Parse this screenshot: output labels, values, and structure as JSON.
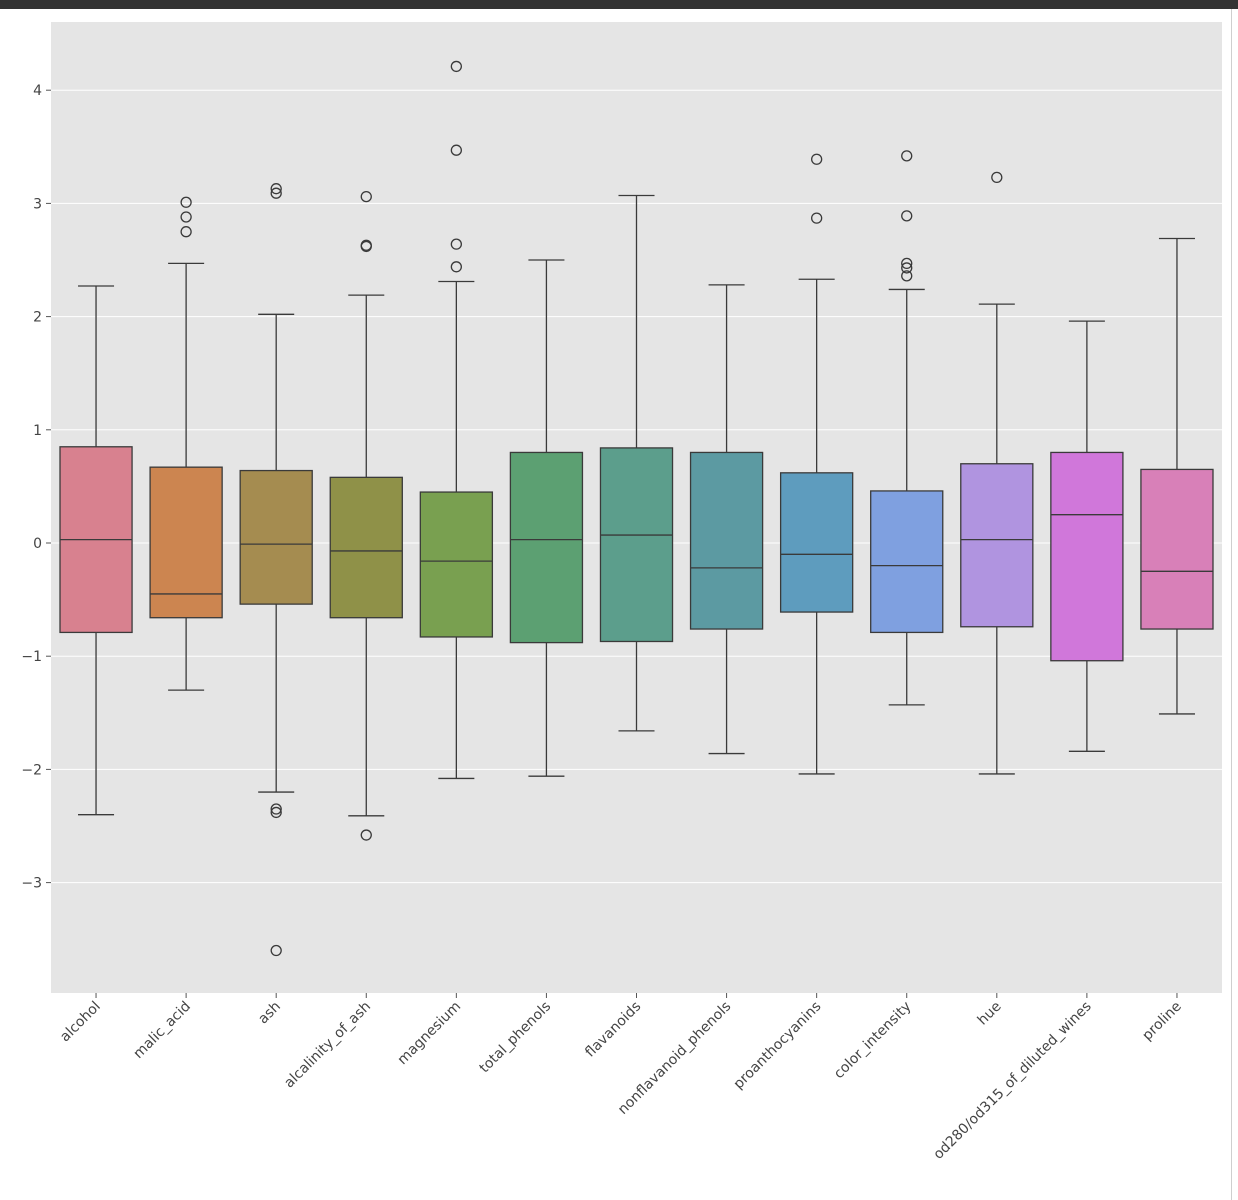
{
  "chart_data": {
    "type": "box",
    "title": "",
    "xlabel": "",
    "ylabel": "",
    "ylim": [
      -4.0,
      4.6
    ],
    "yticks": [
      4,
      3,
      2,
      1,
      0,
      -1,
      -2,
      -3
    ],
    "ytick_labels": [
      "4",
      "3",
      "2",
      "1",
      "0",
      "−1",
      "−2",
      "−3"
    ],
    "grid": true,
    "categories": [
      "alcohol",
      "malic_acid",
      "ash",
      "alcalinity_of_ash",
      "magnesium",
      "total_phenols",
      "flavanoids",
      "nonflavanoid_phenols",
      "proanthocyanins",
      "color_intensity",
      "hue",
      "od280/od315_of_diluted_wines",
      "proline"
    ],
    "boxes": [
      {
        "whislo": -2.4,
        "q1": -0.79,
        "med": 0.03,
        "q3": 0.85,
        "whishi": 2.27,
        "fliers": [],
        "color": "#d8818f"
      },
      {
        "whislo": -1.3,
        "q1": -0.66,
        "med": -0.45,
        "q3": 0.67,
        "whishi": 2.47,
        "fliers": [
          3.01,
          2.88,
          2.75
        ],
        "color": "#cc8550"
      },
      {
        "whislo": -2.2,
        "q1": -0.54,
        "med": -0.01,
        "q3": 0.64,
        "whishi": 2.02,
        "fliers": [
          3.13,
          3.09,
          -2.35,
          -2.38,
          -3.6
        ],
        "color": "#a58c50"
      },
      {
        "whislo": -2.41,
        "q1": -0.66,
        "med": -0.07,
        "q3": 0.58,
        "whishi": 2.19,
        "fliers": [
          3.06,
          2.63,
          2.62,
          -2.58
        ],
        "color": "#8f9148"
      },
      {
        "whislo": -2.08,
        "q1": -0.83,
        "med": -0.16,
        "q3": 0.45,
        "whishi": 2.31,
        "fliers": [
          4.21,
          3.47,
          2.64,
          2.44
        ],
        "color": "#79a050"
      },
      {
        "whislo": -2.06,
        "q1": -0.88,
        "med": 0.03,
        "q3": 0.8,
        "whishi": 2.5,
        "fliers": [],
        "color": "#5ca072"
      },
      {
        "whislo": -1.66,
        "q1": -0.87,
        "med": 0.07,
        "q3": 0.84,
        "whishi": 3.07,
        "fliers": [],
        "color": "#5c9e8c"
      },
      {
        "whislo": -1.86,
        "q1": -0.76,
        "med": -0.22,
        "q3": 0.8,
        "whishi": 2.28,
        "fliers": [],
        "color": "#5c9aa2"
      },
      {
        "whislo": -2.04,
        "q1": -0.61,
        "med": -0.1,
        "q3": 0.62,
        "whishi": 2.33,
        "fliers": [
          3.39,
          2.87
        ],
        "color": "#5e9cbe"
      },
      {
        "whislo": -1.43,
        "q1": -0.79,
        "med": -0.2,
        "q3": 0.46,
        "whishi": 2.24,
        "fliers": [
          3.42,
          2.89,
          2.47,
          2.43,
          2.36
        ],
        "color": "#7fa0e0"
      },
      {
        "whislo": -2.04,
        "q1": -0.74,
        "med": 0.03,
        "q3": 0.7,
        "whishi": 2.11,
        "fliers": [
          3.23
        ],
        "color": "#b094e0"
      },
      {
        "whislo": -1.84,
        "q1": -1.04,
        "med": 0.25,
        "q3": 0.8,
        "whishi": 1.96,
        "fliers": [],
        "color": "#d077da"
      },
      {
        "whislo": -1.51,
        "q1": -0.76,
        "med": -0.25,
        "q3": 0.65,
        "whishi": 2.69,
        "fliers": [],
        "color": "#d880b8"
      }
    ]
  }
}
